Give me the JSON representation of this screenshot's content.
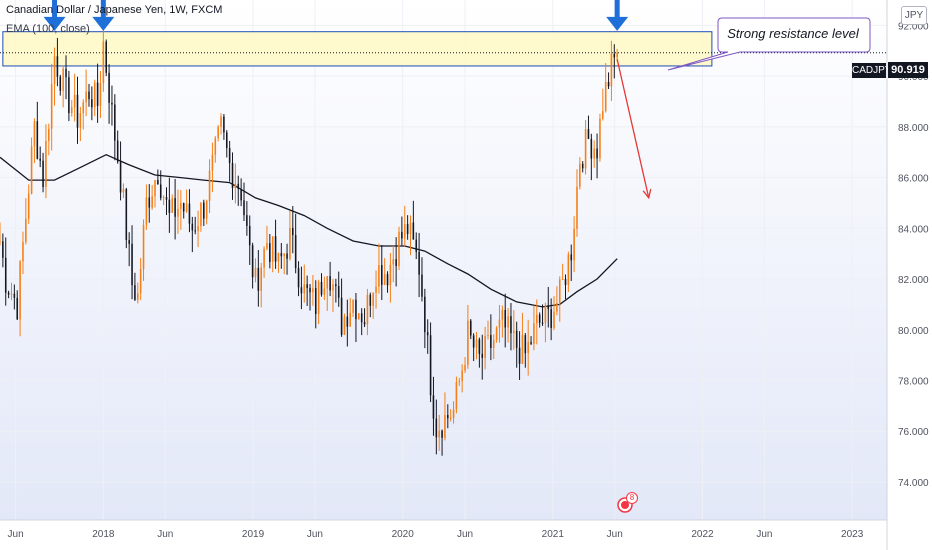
{
  "header": {
    "title": "Canadian Dollar / Japanese Yen, 1W, FXCM",
    "indicator": "EMA (100, close)"
  },
  "currency_button": "JPY",
  "annotation": {
    "text": "Strong resistance level"
  },
  "last_price": {
    "symbol": "CADJPY",
    "value": "90.919"
  },
  "event_marker": {
    "count": "8"
  },
  "colors": {
    "up": "#f57f17",
    "down": "#131722",
    "ema": "#131722",
    "zone_fill": "#fff9c4",
    "zone_border": "#1e4db7",
    "arrow_blue": "#1f6fd8",
    "arrow_red": "#e53935",
    "callout_border": "#7e57c2",
    "background_bottom": "#e3e8f8"
  },
  "chart_data": {
    "type": "candlestick",
    "title": "Canadian Dollar / Japanese Yen, 1W, FXCM",
    "xlabel": "",
    "ylabel": "",
    "ylim": [
      72.5,
      93.0
    ],
    "yticks": [
      74.0,
      76.0,
      78.0,
      80.0,
      82.0,
      84.0,
      86.0,
      88.0,
      90.0,
      92.0
    ],
    "x_range": [
      "2017-04-24",
      "2023-03-27"
    ],
    "x_ticks": [
      {
        "label": "Jun",
        "date": "2017-06-01"
      },
      {
        "label": "2018",
        "date": "2018-01-01"
      },
      {
        "label": "Jun",
        "date": "2018-06-01"
      },
      {
        "label": "2019",
        "date": "2019-01-01"
      },
      {
        "label": "Jun",
        "date": "2019-06-01"
      },
      {
        "label": "2020",
        "date": "2020-01-01"
      },
      {
        "label": "Jun",
        "date": "2020-06-01"
      },
      {
        "label": "2021",
        "date": "2021-01-01"
      },
      {
        "label": "Jun",
        "date": "2021-06-01"
      },
      {
        "label": "2022",
        "date": "2022-01-01"
      },
      {
        "label": "Jun",
        "date": "2022-06-01"
      },
      {
        "label": "2023",
        "date": "2023-01-01"
      }
    ],
    "series_points": [
      [
        "2017-04-24",
        83.5
      ],
      [
        "2017-05-08",
        82.0
      ],
      [
        "2017-06-05",
        81.0
      ],
      [
        "2017-06-26",
        84.5
      ],
      [
        "2017-07-17",
        88.0
      ],
      [
        "2017-08-07",
        86.0
      ],
      [
        "2017-09-04",
        90.8
      ],
      [
        "2017-10-02",
        89.3
      ],
      [
        "2017-10-30",
        88.4
      ],
      [
        "2017-11-27",
        89.4
      ],
      [
        "2017-12-18",
        88.9
      ],
      [
        "2018-01-01",
        91.3
      ],
      [
        "2018-01-22",
        88.5
      ],
      [
        "2018-02-12",
        86.0
      ],
      [
        "2018-03-12",
        81.8
      ],
      [
        "2018-03-26",
        81.3
      ],
      [
        "2018-04-16",
        85.0
      ],
      [
        "2018-05-14",
        86.3
      ],
      [
        "2018-06-11",
        84.4
      ],
      [
        "2018-07-09",
        85.0
      ],
      [
        "2018-08-06",
        84.0
      ],
      [
        "2018-09-03",
        84.9
      ],
      [
        "2018-09-24",
        86.4
      ],
      [
        "2018-10-15",
        87.9
      ],
      [
        "2018-11-05",
        86.5
      ],
      [
        "2018-12-03",
        85.5
      ],
      [
        "2018-12-24",
        83.0
      ],
      [
        "2019-01-07",
        81.8
      ],
      [
        "2019-02-04",
        83.5
      ],
      [
        "2019-03-04",
        82.5
      ],
      [
        "2019-04-01",
        83.6
      ],
      [
        "2019-05-06",
        81.5
      ],
      [
        "2019-06-03",
        81.0
      ],
      [
        "2019-07-01",
        82.7
      ],
      [
        "2019-08-05",
        80.3
      ],
      [
        "2019-09-02",
        81.2
      ],
      [
        "2019-09-30",
        80.5
      ],
      [
        "2019-10-28",
        82.4
      ],
      [
        "2019-11-25",
        82.3
      ],
      [
        "2019-12-23",
        83.5
      ],
      [
        "2020-01-13",
        84.0
      ],
      [
        "2020-02-10",
        82.5
      ],
      [
        "2020-02-24",
        80.5
      ],
      [
        "2020-03-09",
        78.0
      ],
      [
        "2020-03-23",
        76.2
      ],
      [
        "2020-04-13",
        76.5
      ],
      [
        "2020-05-04",
        76.8
      ],
      [
        "2020-05-25",
        78.5
      ],
      [
        "2020-06-08",
        79.8
      ],
      [
        "2020-07-06",
        78.8
      ],
      [
        "2020-08-03",
        79.4
      ],
      [
        "2020-08-31",
        80.2
      ],
      [
        "2020-09-28",
        79.5
      ],
      [
        "2020-10-26",
        79.0
      ],
      [
        "2020-11-23",
        80.2
      ],
      [
        "2020-12-21",
        80.5
      ],
      [
        "2021-01-18",
        81.3
      ],
      [
        "2021-02-15",
        83.2
      ],
      [
        "2021-03-08",
        86.8
      ],
      [
        "2021-03-29",
        87.5
      ],
      [
        "2021-04-19",
        87.2
      ],
      [
        "2021-05-03",
        89.0
      ],
      [
        "2021-05-24",
        90.3
      ],
      [
        "2021-06-07",
        90.9
      ]
    ],
    "ema100": [
      [
        "2017-04-24",
        86.8
      ],
      [
        "2017-07-03",
        85.9
      ],
      [
        "2017-09-04",
        85.9
      ],
      [
        "2017-11-06",
        86.4
      ],
      [
        "2018-01-08",
        86.9
      ],
      [
        "2018-03-05",
        86.5
      ],
      [
        "2018-05-07",
        86.1
      ],
      [
        "2018-07-09",
        86.0
      ],
      [
        "2018-09-03",
        85.9
      ],
      [
        "2018-11-05",
        85.8
      ],
      [
        "2019-01-07",
        85.2
      ],
      [
        "2019-03-04",
        84.9
      ],
      [
        "2019-05-06",
        84.5
      ],
      [
        "2019-07-01",
        84.0
      ],
      [
        "2019-09-02",
        83.5
      ],
      [
        "2019-11-04",
        83.3
      ],
      [
        "2020-01-06",
        83.3
      ],
      [
        "2020-02-24",
        83.1
      ],
      [
        "2020-04-20",
        82.6
      ],
      [
        "2020-06-08",
        82.2
      ],
      [
        "2020-08-03",
        81.6
      ],
      [
        "2020-10-05",
        81.1
      ],
      [
        "2020-12-07",
        80.9
      ],
      [
        "2021-01-18",
        81.0
      ],
      [
        "2021-03-01",
        81.5
      ],
      [
        "2021-04-19",
        82.0
      ],
      [
        "2021-06-07",
        82.8
      ]
    ],
    "resistance_zone": {
      "from": "2017-05-01",
      "to": "2022-01-24",
      "low": 90.4,
      "high": 91.75
    },
    "last_price": 90.919,
    "blue_arrows_at": [
      {
        "date": "2017-09-04",
        "price": 92.1
      },
      {
        "date": "2018-01-01",
        "price": 92.1
      },
      {
        "date": "2021-06-07",
        "price": 92.1
      }
    ],
    "projection": {
      "from": [
        "2021-06-07",
        90.9
      ],
      "to": [
        "2021-08-23",
        85.2
      ]
    },
    "event_date": "2021-06-07"
  }
}
